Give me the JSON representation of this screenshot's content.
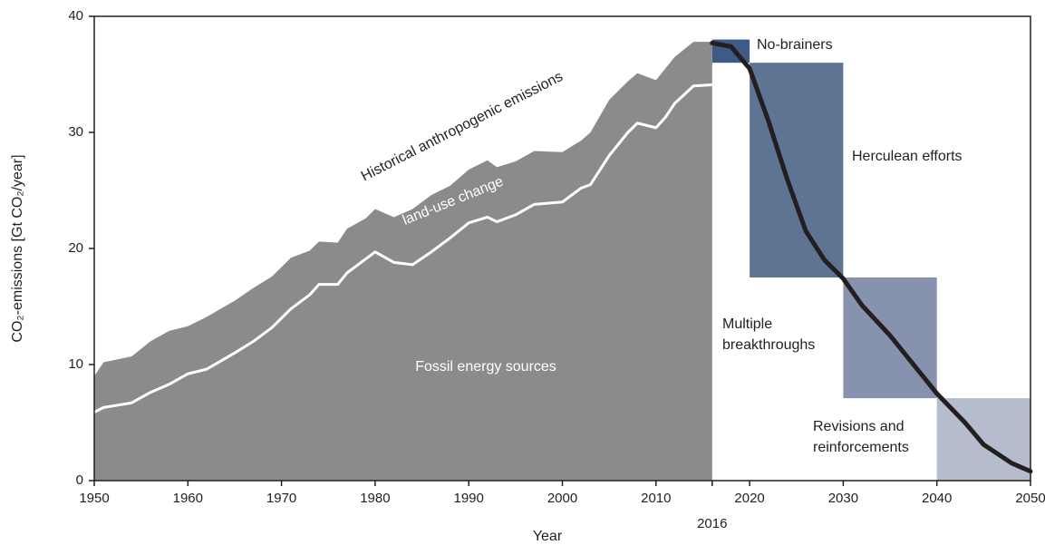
{
  "chart_data": {
    "type": "emissions-pathway",
    "y_label": "CO₂-emissions [Gt CO₂/year]",
    "x_label": "Year",
    "xlim": [
      1950,
      2050
    ],
    "xticks": [
      1950,
      1960,
      1970,
      1980,
      1990,
      2000,
      2010,
      2020,
      2030,
      2040,
      2050
    ],
    "x_marker": 2016,
    "ylim": [
      0,
      40
    ],
    "yticks": [
      0,
      10,
      20,
      30,
      40
    ],
    "annotations": [
      "Historical anthropogenic emissions",
      "land-use change",
      "Fossil energy sources"
    ],
    "series": [
      {
        "kind": "area",
        "color": "#8a8b8d",
        "x": [
          1950,
          1951,
          1954,
          1956,
          1958,
          1960,
          1962,
          1965,
          1967,
          1969,
          1971,
          1973,
          1974,
          1976,
          1977,
          1979,
          1980,
          1982,
          1984,
          1986,
          1988,
          1990,
          1992,
          1993,
          1995,
          1997,
          2000,
          2002,
          2003,
          2005,
          2007,
          2008,
          2010,
          2011,
          2012,
          2014,
          2016
        ],
        "values": [
          9.0,
          10.2,
          10.7,
          12.0,
          12.9,
          13.3,
          14.1,
          15.5,
          16.6,
          17.6,
          19.2,
          19.8,
          20.6,
          20.5,
          21.7,
          22.6,
          23.4,
          22.7,
          23.4,
          24.6,
          25.4,
          26.8,
          27.6,
          27.0,
          27.5,
          28.4,
          28.3,
          29.3,
          30.0,
          32.8,
          34.4,
          35.1,
          34.5,
          35.5,
          36.5,
          37.8,
          37.8
        ]
      },
      {
        "kind": "line",
        "color": "#ffffff",
        "x": [
          1950,
          1951,
          1954,
          1956,
          1958,
          1960,
          1962,
          1965,
          1967,
          1969,
          1971,
          1973,
          1974,
          1976,
          1977,
          1979,
          1980,
          1982,
          1984,
          1986,
          1988,
          1990,
          1992,
          1993,
          1995,
          1997,
          2000,
          2002,
          2003,
          2005,
          2007,
          2008,
          2010,
          2011,
          2012,
          2014,
          2016
        ],
        "values": [
          5.9,
          6.3,
          6.7,
          7.6,
          8.3,
          9.2,
          9.6,
          11.0,
          12.0,
          13.2,
          14.8,
          16.0,
          16.9,
          16.9,
          17.9,
          19.1,
          19.7,
          18.8,
          18.6,
          19.7,
          20.9,
          22.2,
          22.7,
          22.3,
          22.9,
          23.8,
          24.0,
          25.2,
          25.5,
          28.0,
          30.0,
          30.8,
          30.4,
          31.3,
          32.5,
          34.0,
          34.1
        ]
      },
      {
        "kind": "line",
        "color": "#231f20",
        "x": [
          2016,
          2018,
          2020,
          2022,
          2024,
          2026,
          2028,
          2030,
          2032,
          2035,
          2038,
          2040,
          2043,
          2045,
          2048,
          2050
        ],
        "values": [
          37.7,
          37.4,
          35.5,
          31.0,
          26.0,
          21.5,
          19.0,
          17.4,
          15.1,
          12.5,
          9.5,
          7.5,
          5.0,
          3.1,
          1.5,
          0.8
        ]
      }
    ],
    "phases": [
      {
        "label": [
          "No-brainers"
        ],
        "x": [
          2016,
          2020
        ],
        "y": [
          36,
          38
        ],
        "color": "#3e5a86"
      },
      {
        "label": [
          "Herculean efforts"
        ],
        "x": [
          2020,
          2030
        ],
        "y": [
          17.5,
          36
        ],
        "color": "#5f7393"
      },
      {
        "label": [
          "Multiple",
          "breakthroughs"
        ],
        "x": [
          2030,
          2040
        ],
        "y": [
          7.1,
          17.5
        ],
        "color": "#8792ae"
      },
      {
        "label": [
          "Revisions and",
          "reinforcements"
        ],
        "x": [
          2040,
          2050
        ],
        "y": [
          0,
          7.1
        ],
        "color": "#b4bccd"
      }
    ]
  }
}
